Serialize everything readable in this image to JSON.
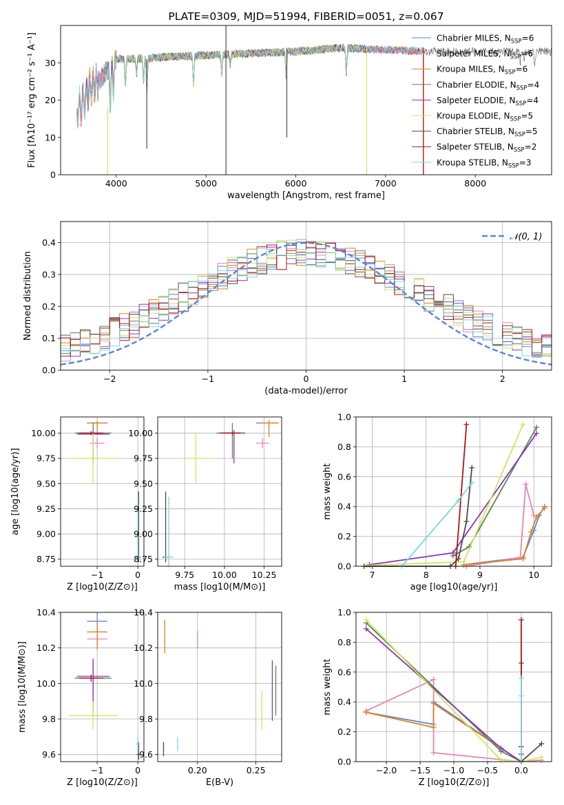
{
  "colors": {
    "Chabrier MILES": "#5b87d6",
    "Salpeter MILES": "#e484b4",
    "Kroupa MILES": "#e08022",
    "Chabrier ELODIE": "#58864f",
    "Salpeter ELODIE": "#8e32b8",
    "Kroupa ELODIE": "#cde85a",
    "Chabrier STELIB": "#4a4a4a",
    "Salpeter STELIB": "#a81416",
    "Kroupa STELIB": "#7fd6d8"
  },
  "chart_data": [
    {
      "id": "spectrum",
      "type": "line",
      "title": "PLATE=0309, MJD=51994, FIBERID=0051, z=0.067",
      "xlabel": "wavelength [Angstrom, rest frame]",
      "ylabel": "Flux [fλ10⁻¹⁷ erg cm⁻² s⁻¹ A⁻¹]",
      "xlim": [
        3380,
        8850
      ],
      "ylim": [
        0,
        40
      ],
      "xticks": [
        4000,
        5000,
        6000,
        7000,
        8000
      ],
      "yticks": [
        0,
        10,
        20,
        30
      ],
      "grid": false,
      "legend_position": "top-right",
      "series": [
        {
          "name": "Chabrier MILES, N_SSP=6",
          "color_key": "Chabrier MILES"
        },
        {
          "name": "Salpeter MILES, N_SSP=6",
          "color_key": "Salpeter MILES"
        },
        {
          "name": "Kroupa MILES, N_SSP=6",
          "color_key": "Kroupa MILES"
        },
        {
          "name": "Chabrier ELODIE, N_SSP=4",
          "color_key": "Chabrier ELODIE"
        },
        {
          "name": "Salpeter ELODIE, N_SSP=4",
          "color_key": "Salpeter ELODIE"
        },
        {
          "name": "Kroupa ELODIE, N_SSP=5",
          "color_key": "Kroupa ELODIE"
        },
        {
          "name": "Chabrier STELIB, N_SSP=5",
          "color_key": "Chabrier STELIB"
        },
        {
          "name": "Salpeter STELIB, N_SSP=2",
          "color_key": "Salpeter STELIB"
        },
        {
          "name": "Kroupa STELIB, N_SSP=3",
          "color_key": "Kroupa STELIB"
        }
      ],
      "continuum": {
        "x": [
          3560,
          3620,
          3700,
          3800,
          3900,
          4000,
          4200,
          4500,
          5000,
          5500,
          6000,
          6500,
          7000,
          7500
        ],
        "y": [
          17,
          19,
          23,
          25,
          28,
          31,
          31,
          31.5,
          32,
          32.5,
          33,
          34,
          33.5,
          33
        ]
      },
      "vertical_lines": [
        {
          "x": 3905,
          "ymin": 0,
          "ymax": 18,
          "color_key": "Kroupa ELODIE"
        },
        {
          "x": 4340,
          "ymin": 7,
          "ymax": 31,
          "color_key": "Chabrier STELIB"
        },
        {
          "x": 5222,
          "ymin": 0,
          "ymax": 40,
          "color_key": "Chabrier STELIB"
        },
        {
          "x": 5900,
          "ymin": 10,
          "ymax": 34,
          "color_key": "Chabrier STELIB"
        },
        {
          "x": 6790,
          "ymin": 0,
          "ymax": 34,
          "color_key": "Kroupa ELODIE"
        },
        {
          "x": 7420,
          "ymin": 0,
          "ymax": 34,
          "color_key": "Kroupa MILES"
        },
        {
          "x": 7422,
          "ymin": 0,
          "ymax": 34,
          "color_key": "Salpeter STELIB"
        }
      ]
    },
    {
      "id": "residuals",
      "type": "line",
      "xlabel": "(data-model)/error",
      "ylabel": "Normed distribution",
      "xlim": [
        -2.5,
        2.5
      ],
      "ylim": [
        0,
        0.466
      ],
      "xticks": [
        -2,
        -1,
        0,
        1,
        2
      ],
      "yticks": [
        0.0,
        0.1,
        0.2,
        0.3,
        0.4
      ],
      "grid": true,
      "legend_position": "top-right",
      "legend": "𝒩(0, 1)",
      "gaussian": {
        "mean": 0,
        "sigma": 1
      },
      "bin_width": 0.1
    },
    {
      "id": "age-vs-Z",
      "type": "scatter",
      "xlabel": "Z [log10(Z/Z⊙)]",
      "ylabel": "age  [log10(age/yr)]",
      "xlim": [
        -1.9,
        0.15
      ],
      "ylim": [
        8.68,
        10.16
      ],
      "xticks": [
        -1,
        0
      ],
      "yticks": [
        8.75,
        9.0,
        9.25,
        9.5,
        9.75,
        10.0
      ],
      "grid": true,
      "points": [
        {
          "key": "Chabrier MILES",
          "x": -1.0,
          "y": 10.1,
          "xerr": [
            0.25,
            0.25
          ],
          "yerr": [
            0.05,
            0.02
          ]
        },
        {
          "key": "Salpeter MILES",
          "x": -1.0,
          "y": 9.9,
          "xerr": [
            0.18,
            0.18
          ],
          "yerr": [
            0.05,
            0.05
          ]
        },
        {
          "key": "Kroupa MILES",
          "x": -1.0,
          "y": 10.1,
          "xerr": [
            0.25,
            0.25
          ],
          "yerr": [
            0.12,
            0.02
          ]
        },
        {
          "key": "Chabrier ELODIE",
          "x": -1.1,
          "y": 10.0,
          "xerr": [
            0.45,
            0.45
          ],
          "yerr": [
            0.25,
            0.1
          ]
        },
        {
          "key": "Salpeter ELODIE",
          "x": -1.1,
          "y": 9.99,
          "xerr": [
            0.4,
            0.4
          ],
          "yerr": [
            0.3,
            0.03
          ]
        },
        {
          "key": "Kroupa ELODIE",
          "x": -1.1,
          "y": 9.75,
          "xerr": [
            0.6,
            0.6
          ],
          "yerr": [
            0.25,
            0.25
          ]
        },
        {
          "key": "Chabrier STELIB",
          "x": 0.02,
          "y": 8.77,
          "xerr": [
            0.05,
            0.05
          ],
          "yerr": [
            0.05,
            0.65
          ]
        },
        {
          "key": "Salpeter STELIB",
          "x": -1.15,
          "y": 10.0,
          "xerr": [
            0.3,
            0.3
          ],
          "yerr": [
            0.02,
            0.02
          ]
        },
        {
          "key": "Kroupa STELIB",
          "x": 0.0,
          "y": 8.77,
          "xerr": [
            0.05,
            0.05
          ],
          "yerr": [
            0.1,
            0.6
          ]
        }
      ]
    },
    {
      "id": "age-vs-mass",
      "type": "scatter",
      "xlabel": "mass [log10(M/M⊙)]",
      "xlim": [
        9.58,
        10.36
      ],
      "ylim": [
        8.68,
        10.16
      ],
      "xticks": [
        9.75,
        10.0,
        10.25
      ],
      "xticklabels": [
        "9.75",
        "10.00",
        "10.25"
      ],
      "yticks": [
        8.75,
        9.0,
        9.25,
        9.5,
        9.75,
        10.0
      ],
      "grid": true,
      "points": [
        {
          "key": "Chabrier MILES",
          "x": 10.28,
          "y": 10.1,
          "xerr": [
            0.08,
            0.06
          ],
          "yerr": [
            0.03,
            0.03
          ]
        },
        {
          "key": "Salpeter MILES",
          "x": 10.24,
          "y": 9.9,
          "xerr": [
            0.04,
            0.04
          ],
          "yerr": [
            0.05,
            0.05
          ]
        },
        {
          "key": "Kroupa MILES",
          "x": 10.28,
          "y": 10.1,
          "xerr": [
            0.06,
            0.06
          ],
          "yerr": [
            0.14,
            0.02
          ]
        },
        {
          "key": "Chabrier ELODIE",
          "x": 10.05,
          "y": 10.0,
          "xerr": [
            0.1,
            0.08
          ],
          "yerr": [
            0.25,
            0.1
          ]
        },
        {
          "key": "Salpeter ELODIE",
          "x": 10.06,
          "y": 10.0,
          "xerr": [
            0.07,
            0.07
          ],
          "yerr": [
            0.3,
            0.03
          ]
        },
        {
          "key": "Kroupa ELODIE",
          "x": 9.82,
          "y": 9.75,
          "xerr": [
            0.08,
            0.1
          ],
          "yerr": [
            0.25,
            0.25
          ]
        },
        {
          "key": "Chabrier STELIB",
          "x": 9.63,
          "y": 8.77,
          "xerr": [
            0.02,
            0.02
          ],
          "yerr": [
            0.05,
            0.65
          ]
        },
        {
          "key": "Salpeter STELIB",
          "x": 10.05,
          "y": 10.0,
          "xerr": [
            0.08,
            0.05
          ],
          "yerr": [
            0.02,
            0.02
          ]
        },
        {
          "key": "Kroupa STELIB",
          "x": 9.65,
          "y": 8.77,
          "xerr": [
            0.03,
            0.03
          ],
          "yerr": [
            0.1,
            0.6
          ]
        }
      ]
    },
    {
      "id": "weight-vs-age",
      "type": "line",
      "xlabel": "age  [log10(age/yr)]",
      "ylabel": "mass weight",
      "xlim": [
        6.7,
        10.33
      ],
      "ylim": [
        0,
        1
      ],
      "xticks": [
        7,
        8,
        9,
        10
      ],
      "yticks": [
        0.0,
        0.2,
        0.4,
        0.6,
        0.8,
        1.0
      ],
      "grid": true,
      "series": [
        {
          "key": "Chabrier MILES",
          "x": [
            8.7,
            9.8,
            10.0,
            10.1,
            10.2
          ],
          "y": [
            0.01,
            0.06,
            0.24,
            0.34,
            0.4
          ]
        },
        {
          "key": "Salpeter MILES",
          "x": [
            8.75,
            9.75,
            9.85,
            10.0
          ],
          "y": [
            0.0,
            0.06,
            0.55,
            0.34
          ]
        },
        {
          "key": "Kroupa MILES",
          "x": [
            8.7,
            9.8,
            9.95,
            10.05,
            10.2
          ],
          "y": [
            0.01,
            0.05,
            0.23,
            0.33,
            0.39
          ]
        },
        {
          "key": "Chabrier ELODIE",
          "x": [
            8.5,
            8.8,
            10.05
          ],
          "y": [
            0.07,
            0.13,
            0.93
          ]
        },
        {
          "key": "Salpeter ELODIE",
          "x": [
            6.95,
            8.5,
            10.05
          ],
          "y": [
            0.01,
            0.09,
            0.89
          ]
        },
        {
          "key": "Kroupa ELODIE",
          "x": [
            6.9,
            8.7,
            9.8
          ],
          "y": [
            0.005,
            0.03,
            0.95
          ]
        },
        {
          "key": "Chabrier STELIB",
          "x": [
            6.85,
            8.45,
            8.6,
            8.75,
            8.85
          ],
          "y": [
            0.0,
            0.0,
            0.05,
            0.3,
            0.66
          ]
        },
        {
          "key": "Salpeter STELIB",
          "x": [
            8.55,
            8.75
          ],
          "y": [
            0.0,
            0.95
          ]
        },
        {
          "key": "Kroupa STELIB",
          "x": [
            7.55,
            8.6,
            8.85
          ],
          "y": [
            0.0,
            0.44,
            0.56
          ]
        }
      ]
    },
    {
      "id": "mass-vs-Z",
      "type": "scatter",
      "xlabel": "Z [log10(Z/Z⊙)]",
      "ylabel": "mass [log10(M/M⊙)]",
      "xlim": [
        -1.9,
        0.15
      ],
      "ylim": [
        9.56,
        10.4
      ],
      "xticks": [
        -1,
        0
      ],
      "yticks": [
        9.6,
        9.8,
        10.0,
        10.2,
        10.4
      ],
      "grid": true,
      "points": [
        {
          "key": "Chabrier MILES",
          "x": -1.0,
          "y": 10.35,
          "xerr": [
            0.25,
            0.25
          ],
          "yerr": [
            0.06,
            0.06
          ]
        },
        {
          "key": "Salpeter MILES",
          "x": -1.0,
          "y": 10.25,
          "xerr": [
            0.25,
            0.25
          ],
          "yerr": [
            0.05,
            0.05
          ]
        },
        {
          "key": "Kroupa MILES",
          "x": -1.0,
          "y": 10.29,
          "xerr": [
            0.25,
            0.25
          ],
          "yerr": [
            0.1,
            0.06
          ]
        },
        {
          "key": "Chabrier ELODIE",
          "x": -1.1,
          "y": 10.03,
          "xerr": [
            0.45,
            0.45
          ],
          "yerr": [
            0.2,
            0.08
          ]
        },
        {
          "key": "Salpeter ELODIE",
          "x": -1.1,
          "y": 10.04,
          "xerr": [
            0.4,
            0.4
          ],
          "yerr": [
            0.2,
            0.1
          ]
        },
        {
          "key": "Kroupa ELODIE",
          "x": -1.1,
          "y": 9.82,
          "xerr": [
            0.6,
            0.6
          ],
          "yerr": [
            0.08,
            0.08
          ]
        },
        {
          "key": "Chabrier STELIB",
          "x": 0.02,
          "y": 9.6,
          "xerr": [
            0.05,
            0.05
          ],
          "yerr": [
            0.03,
            0.07
          ]
        },
        {
          "key": "Salpeter STELIB",
          "x": -1.15,
          "y": 10.03,
          "xerr": [
            0.3,
            0.3
          ],
          "yerr": [
            0.02,
            0.02
          ]
        },
        {
          "key": "Kroupa STELIB",
          "x": 0.0,
          "y": 9.66,
          "xerr": [
            0.05,
            0.05
          ],
          "yerr": [
            0.04,
            0.04
          ]
        }
      ]
    },
    {
      "id": "mass-vs-EBV",
      "type": "scatter",
      "xlabel": "E(B-V)",
      "xlim": [
        0.166,
        0.272
      ],
      "ylim": [
        9.56,
        10.4
      ],
      "xticks": [
        0.2,
        0.25
      ],
      "xticklabels": [
        "0.20",
        "0.25"
      ],
      "yticks": [
        9.6,
        9.8,
        10.0,
        10.2,
        10.4
      ],
      "grid": true,
      "points": [
        {
          "key": "Kroupa MILES",
          "x": 0.172,
          "y": 10.27,
          "yerr": [
            0.1,
            0.09
          ]
        },
        {
          "key": "Salpeter MILES",
          "x": 0.2,
          "y": 10.25,
          "yerr": [
            0.05,
            0.05
          ]
        },
        {
          "key": "Chabrier STELIB",
          "x": 0.171,
          "y": 9.62,
          "yerr": [
            0.03,
            0.05
          ]
        },
        {
          "key": "Kroupa STELIB",
          "x": 0.183,
          "y": 9.66,
          "yerr": [
            0.04,
            0.04
          ]
        },
        {
          "key": "Kroupa ELODIE",
          "x": 0.255,
          "y": 9.85,
          "yerr": [
            0.11,
            0.11
          ]
        },
        {
          "key": "Salpeter ELODIE",
          "x": 0.264,
          "y": 9.96,
          "yerr": [
            0.17,
            0.17
          ]
        },
        {
          "key": "Chabrier ELODIE",
          "x": 0.267,
          "y": 9.96,
          "yerr": [
            0.14,
            0.14
          ]
        }
      ]
    },
    {
      "id": "weight-vs-Z",
      "type": "line",
      "xlabel": "Z [log10(Z/Z⊙)]",
      "ylabel": "mass weight",
      "xlim": [
        -2.45,
        0.45
      ],
      "ylim": [
        0,
        1
      ],
      "xticks": [
        -2.0,
        -1.5,
        -1.0,
        -0.5,
        0.0
      ],
      "xticklabels": [
        "−2.0",
        "−1.5",
        "−1.0",
        "−0.5",
        "0.0"
      ],
      "yticks": [
        0.0,
        0.2,
        0.4,
        0.6,
        0.8,
        1.0
      ],
      "grid": true,
      "series": [
        {
          "key": "Chabrier MILES",
          "x": [
            -2.3,
            -1.3,
            -1.3,
            0.0
          ],
          "y": [
            0.33,
            0.25,
            0.4,
            0.0
          ]
        },
        {
          "key": "Salpeter MILES",
          "x": [
            -2.3,
            -1.3,
            -1.3,
            0.0,
            0.3
          ],
          "y": [
            0.34,
            0.55,
            0.06,
            0.0,
            0.01
          ]
        },
        {
          "key": "Kroupa MILES",
          "x": [
            -2.3,
            -1.3,
            -1.3,
            0.0
          ],
          "y": [
            0.33,
            0.23,
            0.39,
            0.0
          ]
        },
        {
          "key": "Chabrier ELODIE",
          "x": [
            -2.3,
            -0.3,
            0.0
          ],
          "y": [
            0.93,
            0.07,
            0.0
          ]
        },
        {
          "key": "Salpeter ELODIE",
          "x": [
            -2.3,
            -0.3,
            0.0
          ],
          "y": [
            0.89,
            0.09,
            0.0
          ]
        },
        {
          "key": "Kroupa ELODIE",
          "x": [
            -2.3,
            -0.3,
            0.0,
            0.3
          ],
          "y": [
            0.95,
            0.01,
            0.0,
            0.03
          ]
        },
        {
          "key": "Chabrier STELIB",
          "x": [
            0.3,
            0.0,
            0.0,
            0.0,
            0.0
          ],
          "y": [
            0.12,
            0.0,
            0.05,
            0.1,
            0.66
          ]
        },
        {
          "key": "Salpeter STELIB",
          "x": [
            0.0,
            0.0
          ],
          "y": [
            0.0,
            0.95
          ]
        },
        {
          "key": "Kroupa STELIB",
          "x": [
            0.0,
            0.0,
            0.0
          ],
          "y": [
            0.0,
            0.44,
            0.56
          ]
        }
      ]
    }
  ]
}
